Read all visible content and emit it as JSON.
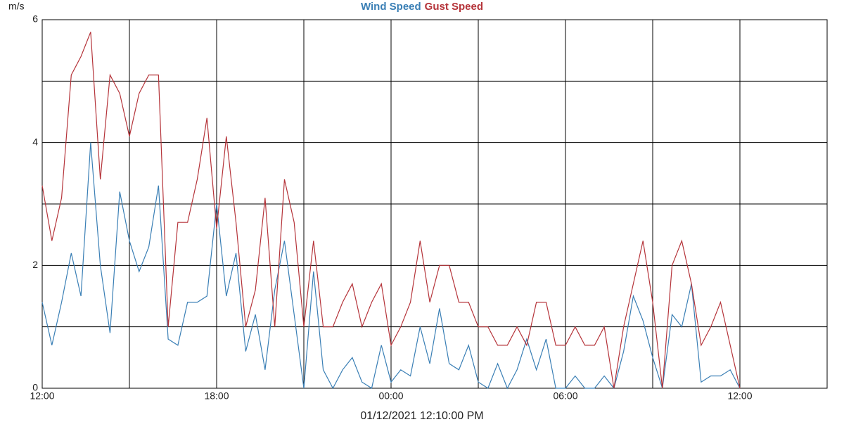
{
  "chart_data": {
    "type": "line",
    "y_label": "m/s",
    "x_label": "01/12/2021 12:10:00 PM",
    "x": [
      0,
      20,
      40,
      60,
      80,
      100,
      120,
      140,
      160,
      180,
      200,
      220,
      240,
      260,
      280,
      300,
      320,
      340,
      360,
      380,
      400,
      420,
      440,
      460,
      480,
      500,
      520,
      540,
      560,
      580,
      600,
      620,
      640,
      660,
      680,
      700,
      720,
      740,
      760,
      780,
      800,
      820,
      840,
      860,
      880,
      900,
      920,
      940,
      960,
      980,
      1000,
      1020,
      1040,
      1060,
      1080,
      1100,
      1120,
      1140,
      1160,
      1180,
      1200,
      1220,
      1240,
      1260,
      1280,
      1300,
      1320,
      1340,
      1360,
      1380,
      1400,
      1420,
      1440
    ],
    "series": [
      {
        "name": "Wind Speed",
        "color": "#3a7fb5",
        "values": [
          1.4,
          0.7,
          1.4,
          2.2,
          1.5,
          4.0,
          2.0,
          0.9,
          3.2,
          2.4,
          1.9,
          2.3,
          3.3,
          0.8,
          0.7,
          1.4,
          1.4,
          1.5,
          3.0,
          1.5,
          2.2,
          0.6,
          1.2,
          0.3,
          1.6,
          2.4,
          1.2,
          0.0,
          1.9,
          0.3,
          0.0,
          0.3,
          0.5,
          0.1,
          0.0,
          0.7,
          0.1,
          0.3,
          0.2,
          1.0,
          0.4,
          1.3,
          0.4,
          0.3,
          0.7,
          0.1,
          0.0,
          0.4,
          0.0,
          0.3,
          0.8,
          0.3,
          0.8,
          0.0,
          0.0,
          0.2,
          0.0,
          0.0,
          0.2,
          0.0,
          0.6,
          1.5,
          1.1,
          0.5,
          0.0,
          1.2,
          1.0,
          1.7,
          0.1,
          0.2,
          0.2,
          0.3,
          0.0
        ]
      },
      {
        "name": "Gust Speed",
        "color": "#b5343a",
        "values": [
          3.3,
          2.4,
          3.1,
          5.1,
          5.4,
          5.8,
          3.4,
          5.1,
          4.8,
          4.1,
          4.8,
          5.1,
          5.1,
          1.0,
          2.7,
          2.7,
          3.4,
          4.4,
          2.6,
          4.1,
          2.7,
          1.0,
          1.6,
          3.1,
          1.0,
          3.4,
          2.7,
          1.0,
          2.4,
          1.0,
          1.0,
          1.4,
          1.7,
          1.0,
          1.4,
          1.7,
          0.7,
          1.0,
          1.4,
          2.4,
          1.4,
          2.0,
          2.0,
          1.4,
          1.4,
          1.0,
          1.0,
          0.7,
          0.7,
          1.0,
          0.7,
          1.4,
          1.4,
          0.7,
          0.7,
          1.0,
          0.7,
          0.7,
          1.0,
          0.0,
          1.0,
          1.7,
          2.4,
          1.4,
          0.0,
          2.0,
          2.4,
          1.7,
          0.7,
          1.0,
          1.4,
          0.7,
          0.0
        ]
      }
    ],
    "xlim": [
      0,
      1620
    ],
    "xticks": [
      {
        "value": 0,
        "label": "12:00"
      },
      {
        "value": 360,
        "label": "18:00"
      },
      {
        "value": 720,
        "label": "00:00"
      },
      {
        "value": 1080,
        "label": "06:00"
      },
      {
        "value": 1440,
        "label": "12:00"
      }
    ],
    "xgrid_minor": [
      180,
      540,
      900,
      1260,
      1620
    ],
    "ylim": [
      0,
      6
    ],
    "yticks": [
      0,
      2,
      4,
      6
    ],
    "ygrid_minor": [
      1,
      3,
      5
    ],
    "grid": true
  }
}
